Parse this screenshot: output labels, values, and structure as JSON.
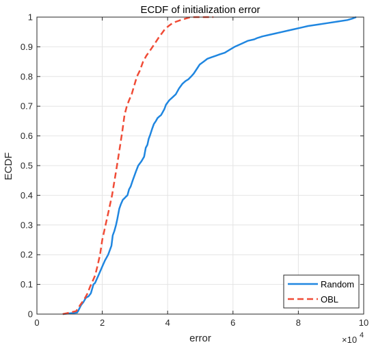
{
  "chart_data": {
    "type": "line",
    "title": "ECDF of initialization error",
    "xlabel": "error",
    "ylabel": "ECDF",
    "x_multiplier_base": "×10",
    "x_multiplier_exp": "4",
    "xlim": [
      0,
      100000
    ],
    "ylim": [
      0,
      1
    ],
    "x_ticks": [
      0,
      20000,
      40000,
      60000,
      80000,
      100000
    ],
    "x_tick_labels": [
      "0",
      "2",
      "4",
      "6",
      "8",
      "10"
    ],
    "y_ticks": [
      0,
      0.1,
      0.2,
      0.3,
      0.4,
      0.5,
      0.6,
      0.7,
      0.8,
      0.9,
      1
    ],
    "y_tick_labels": [
      "0",
      "0.1",
      "0.2",
      "0.3",
      "0.4",
      "0.5",
      "0.6",
      "0.7",
      "0.8",
      "0.9",
      "1"
    ],
    "grid": true,
    "legend_position": "bottom-right",
    "series": [
      {
        "name": "Random",
        "color": "#1f86e0",
        "style": "solid",
        "x": [
          7900,
          12300,
          12600,
          13500,
          14200,
          15000,
          15800,
          16500,
          17300,
          17800,
          18800,
          19800,
          20800,
          21800,
          22800,
          23200,
          23700,
          24200,
          24600,
          25200,
          25700,
          26300,
          26800,
          27200,
          27700,
          28200,
          28700,
          29300,
          30300,
          31000,
          32000,
          32800,
          33300,
          33800,
          34200,
          34700,
          35300,
          35800,
          36400,
          36900,
          37400,
          38000,
          38500,
          39000,
          39500,
          40500,
          41500,
          42500,
          43500,
          44500,
          45500,
          46300,
          47200,
          48000,
          48900,
          49800,
          51000,
          52200,
          53500,
          54800,
          56000,
          57500,
          59000,
          60500,
          62500,
          64500,
          66500,
          67500,
          69000,
          71000,
          73000,
          75000,
          77000,
          79000,
          81000,
          83000,
          86000,
          89000,
          92000,
          95000,
          96500,
          97700
        ],
        "y": [
          0,
          0.005,
          0.01,
          0.03,
          0.04,
          0.055,
          0.06,
          0.07,
          0.1,
          0.105,
          0.13,
          0.155,
          0.18,
          0.2,
          0.23,
          0.265,
          0.28,
          0.3,
          0.32,
          0.355,
          0.37,
          0.385,
          0.39,
          0.395,
          0.4,
          0.42,
          0.43,
          0.45,
          0.48,
          0.5,
          0.515,
          0.53,
          0.56,
          0.57,
          0.59,
          0.605,
          0.625,
          0.64,
          0.65,
          0.66,
          0.665,
          0.67,
          0.68,
          0.69,
          0.705,
          0.72,
          0.73,
          0.74,
          0.76,
          0.775,
          0.785,
          0.79,
          0.8,
          0.81,
          0.825,
          0.84,
          0.85,
          0.86,
          0.865,
          0.87,
          0.875,
          0.88,
          0.89,
          0.9,
          0.91,
          0.92,
          0.925,
          0.93,
          0.935,
          0.94,
          0.945,
          0.95,
          0.955,
          0.96,
          0.965,
          0.97,
          0.975,
          0.98,
          0.985,
          0.99,
          0.995,
          1
        ]
      },
      {
        "name": "OBL",
        "color": "#f04b36",
        "style": "dashed",
        "x": [
          7900,
          10000,
          12000,
          13200,
          14500,
          15500,
          16200,
          17000,
          17800,
          18500,
          19300,
          20000,
          21000,
          22000,
          23000,
          23600,
          24200,
          24800,
          25500,
          26200,
          26800,
          27500,
          28200,
          29000,
          29800,
          30600,
          31500,
          32500,
          33500,
          34800,
          36000,
          37200,
          38200,
          39200,
          40300,
          41500,
          42700,
          44000,
          45500,
          47000,
          49000,
          51000,
          54000
        ],
        "y": [
          0,
          0.005,
          0.01,
          0.03,
          0.05,
          0.07,
          0.09,
          0.11,
          0.13,
          0.16,
          0.2,
          0.25,
          0.3,
          0.35,
          0.4,
          0.44,
          0.48,
          0.52,
          0.57,
          0.62,
          0.67,
          0.7,
          0.72,
          0.74,
          0.77,
          0.8,
          0.82,
          0.85,
          0.87,
          0.89,
          0.91,
          0.93,
          0.945,
          0.96,
          0.97,
          0.98,
          0.985,
          0.99,
          0.995,
          1,
          1,
          1,
          1
        ]
      }
    ]
  }
}
